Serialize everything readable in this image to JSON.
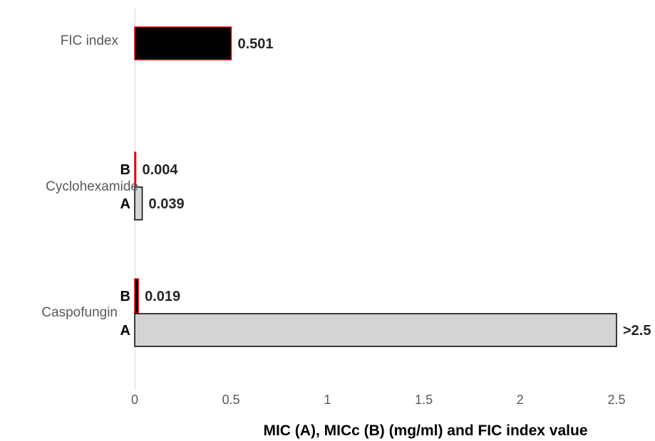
{
  "chart_data": {
    "type": "bar",
    "orientation": "horizontal",
    "xlabel": "MIC (A), MICc (B) (mg/ml) and FIC index value",
    "xlim": [
      0,
      2.5
    ],
    "xticks": [
      "0",
      "0.5",
      "1",
      "1.5",
      "2",
      "2.5"
    ],
    "xtick_values": [
      0,
      0.5,
      1,
      1.5,
      2,
      2.5
    ],
    "grid": false,
    "bars": [
      {
        "category": "FIC index",
        "sub": "",
        "value": 0.501,
        "label": "0.501",
        "fill": "#000000",
        "stroke": "#e00000"
      },
      {
        "category": "Cyclohexamide",
        "sub": "B",
        "value": 0.004,
        "label": "0.004",
        "fill": "#000000",
        "stroke": "#e00000"
      },
      {
        "category": "Cyclohexamide",
        "sub": "A",
        "value": 0.039,
        "label": "0.039",
        "fill": "#d4d4d4",
        "stroke": "#000000"
      },
      {
        "category": "Caspofungin",
        "sub": "B",
        "value": 0.019,
        "label": "0.019",
        "fill": "#000000",
        "stroke": "#e00000"
      },
      {
        "category": "Caspofungin",
        "sub": "A",
        "value": 2.5,
        "label": ">2.5",
        "fill": "#d4d4d4",
        "stroke": "#000000"
      }
    ],
    "categories": [
      "FIC index",
      "Cyclohexamide",
      "Caspofungin"
    ]
  }
}
